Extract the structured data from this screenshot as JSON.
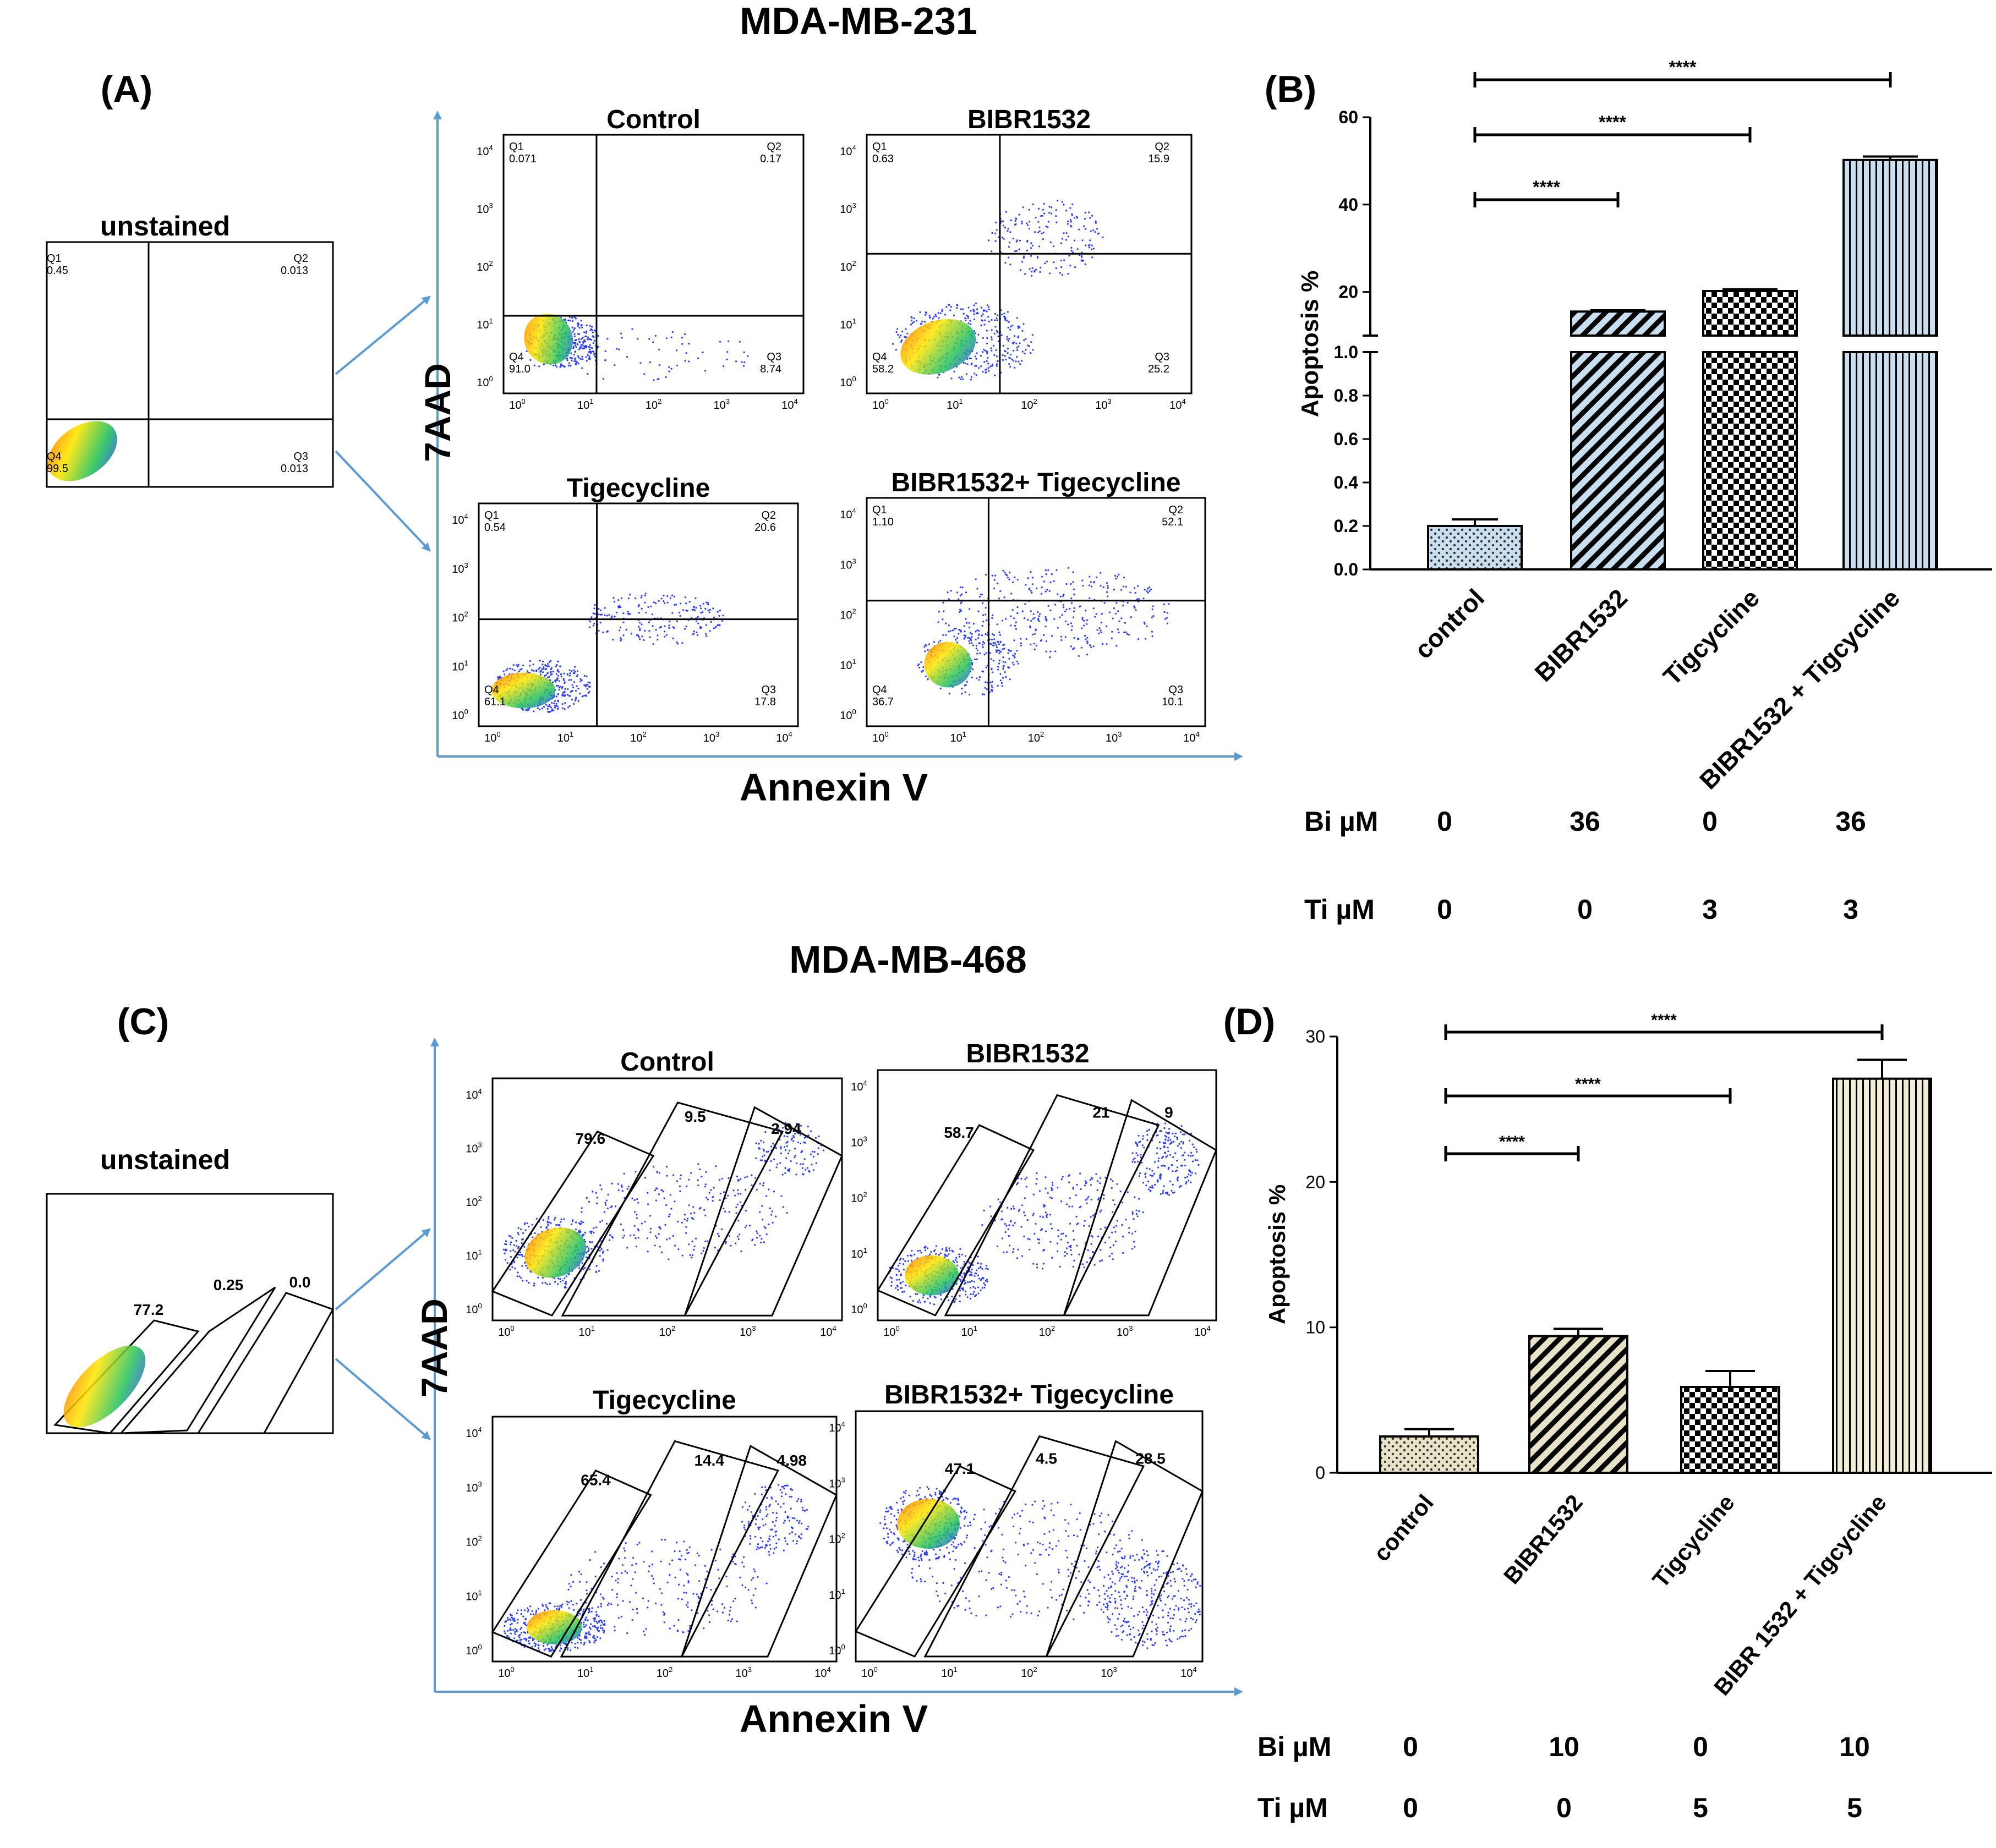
{
  "sections": [
    {
      "title": "MDA-MB-231",
      "panel_a_label": "(A)",
      "panel_b_label": "(B)",
      "gate_style": "quadrant",
      "y_axis_label": "7AAD",
      "x_axis_label": "Annexin V",
      "unstained": {
        "title": "unstained",
        "quadrants": [
          {
            "name": "Q1",
            "value": "0.45"
          },
          {
            "name": "Q2",
            "value": "0.013"
          },
          {
            "name": "Q3",
            "value": "0.013"
          },
          {
            "name": "Q4",
            "value": "99.5"
          }
        ]
      },
      "plots": [
        {
          "title": "Control",
          "quadrants": [
            {
              "name": "Q1",
              "value": "0.071"
            },
            {
              "name": "Q2",
              "value": "0.17"
            },
            {
              "name": "Q3",
              "value": "8.74"
            },
            {
              "name": "Q4",
              "value": "91.0"
            }
          ]
        },
        {
          "title": "BIBR1532",
          "quadrants": [
            {
              "name": "Q1",
              "value": "0.63"
            },
            {
              "name": "Q2",
              "value": "15.9"
            },
            {
              "name": "Q3",
              "value": "25.2"
            },
            {
              "name": "Q4",
              "value": "58.2"
            }
          ]
        },
        {
          "title": "Tigecycline",
          "quadrants": [
            {
              "name": "Q1",
              "value": "0.54"
            },
            {
              "name": "Q2",
              "value": "20.6"
            },
            {
              "name": "Q3",
              "value": "17.8"
            },
            {
              "name": "Q4",
              "value": "61.1"
            }
          ]
        },
        {
          "title": "BIBR1532+ Tigecycline",
          "quadrants": [
            {
              "name": "Q1",
              "value": "1.10"
            },
            {
              "name": "Q2",
              "value": "52.1"
            },
            {
              "name": "Q3",
              "value": "10.1"
            },
            {
              "name": "Q4",
              "value": "36.7"
            }
          ]
        }
      ],
      "dose_rows": [
        {
          "label": "Bi µM",
          "values": [
            "0",
            "36",
            "0",
            "36"
          ]
        },
        {
          "label": "Ti µM",
          "values": [
            "0",
            "0",
            "3",
            "3"
          ]
        }
      ]
    },
    {
      "title": "MDA-MB-468",
      "panel_a_label": "(C)",
      "panel_b_label": "(D)",
      "gate_style": "diagonal",
      "y_axis_label": "7AAD",
      "x_axis_label": "Annexin V",
      "unstained": {
        "title": "unstained",
        "gates": [
          "77.2",
          "0.25",
          "0.0"
        ]
      },
      "plots": [
        {
          "title": "Control",
          "gates": [
            "79.6",
            "9.5",
            "2.94"
          ]
        },
        {
          "title": "BIBR1532",
          "gates": [
            "58.7",
            "21",
            "9"
          ]
        },
        {
          "title": "Tigecycline",
          "gates": [
            "65.4",
            "14.4",
            "4.98"
          ]
        },
        {
          "title": "BIBR1532+ Tigecycline",
          "gates": [
            "47.1",
            "4.5",
            "28.5"
          ]
        }
      ],
      "dose_rows": [
        {
          "label": "Bi µM",
          "values": [
            "0",
            "10",
            "0",
            "10"
          ]
        },
        {
          "label": "Ti µM",
          "values": [
            "0",
            "0",
            "5",
            "5"
          ]
        }
      ]
    }
  ],
  "flow_axis_ticks": [
    "10",
    "10",
    "10",
    "10",
    "10"
  ],
  "flow_axis_exponents": [
    "0",
    "1",
    "2",
    "3",
    "4"
  ],
  "chart_data": [
    {
      "type": "bar",
      "panel": "(B)",
      "categories": [
        "control",
        "BIBR1532",
        "Tigcycline",
        "BIBR1532 + Tigcycline"
      ],
      "values": [
        0.2,
        15.5,
        20.2,
        50.2
      ],
      "errors": [
        0.03,
        0.3,
        0.4,
        0.8
      ],
      "ylabel": "Apoptosis %",
      "y_break": true,
      "lower_range": [
        0,
        1.0
      ],
      "lower_ticks": [
        "0.0",
        "0.2",
        "0.4",
        "0.6",
        "0.8",
        "1.0"
      ],
      "upper_range": [
        10,
        60
      ],
      "upper_ticks": [
        "20",
        "40",
        "60"
      ],
      "fill_colors": [
        "#c9dff0",
        "#c9dff0",
        "#ffffff",
        "#c9dff0"
      ],
      "patterns": [
        "dots",
        "diagonal",
        "checker",
        "vertical"
      ],
      "significance": [
        {
          "from": 0,
          "to": 1,
          "label": "****"
        },
        {
          "from": 0,
          "to": 2,
          "label": "****"
        },
        {
          "from": 0,
          "to": 3,
          "label": "****"
        }
      ]
    },
    {
      "type": "bar",
      "panel": "(D)",
      "categories": [
        "control",
        "BIBR1532",
        "Tigcycline",
        "BIBR 1532 + Tigcycline"
      ],
      "values": [
        2.5,
        9.4,
        5.9,
        27.1
      ],
      "errors": [
        0.5,
        0.5,
        1.1,
        1.3
      ],
      "ylabel": "Apoptosis %",
      "y_break": false,
      "ylim": [
        0,
        30
      ],
      "yticks": [
        "0",
        "10",
        "20",
        "30"
      ],
      "fill_colors": [
        "#e8e2c6",
        "#e8e2c6",
        "#ffffff",
        "#f3eed6"
      ],
      "patterns": [
        "dots",
        "diagonal",
        "checker",
        "vertical"
      ],
      "significance": [
        {
          "from": 0,
          "to": 1,
          "label": "****"
        },
        {
          "from": 0,
          "to": 2,
          "label": "****"
        },
        {
          "from": 0,
          "to": 3,
          "label": "****"
        }
      ]
    }
  ]
}
